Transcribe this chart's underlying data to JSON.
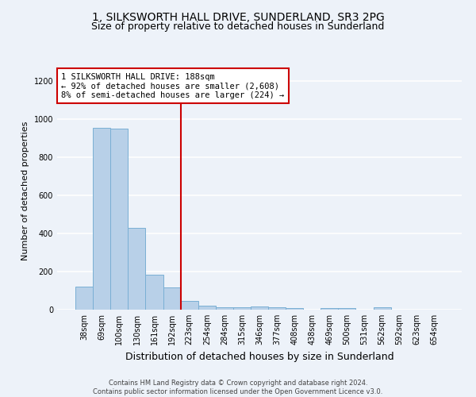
{
  "title": "1, SILKSWORTH HALL DRIVE, SUNDERLAND, SR3 2PG",
  "subtitle": "Size of property relative to detached houses in Sunderland",
  "xlabel": "Distribution of detached houses by size in Sunderland",
  "ylabel": "Number of detached properties",
  "categories": [
    "38sqm",
    "69sqm",
    "100sqm",
    "130sqm",
    "161sqm",
    "192sqm",
    "223sqm",
    "254sqm",
    "284sqm",
    "315sqm",
    "346sqm",
    "377sqm",
    "408sqm",
    "438sqm",
    "469sqm",
    "500sqm",
    "531sqm",
    "562sqm",
    "592sqm",
    "623sqm",
    "654sqm"
  ],
  "values": [
    120,
    955,
    950,
    430,
    185,
    115,
    45,
    20,
    13,
    13,
    15,
    13,
    10,
    0,
    10,
    10,
    0,
    12,
    0,
    0,
    0
  ],
  "bar_color": "#b8d0e8",
  "bar_edge_color": "#7aafd4",
  "property_line_x": 5.5,
  "annotation_line1": "1 SILKSWORTH HALL DRIVE: 188sqm",
  "annotation_line2": "← 92% of detached houses are smaller (2,608)",
  "annotation_line3": "8% of semi-detached houses are larger (224) →",
  "annotation_facecolor": "#ffffff",
  "annotation_edge_color": "#cc0000",
  "vline_color": "#cc0000",
  "ylim": [
    0,
    1250
  ],
  "yticks": [
    0,
    200,
    400,
    600,
    800,
    1000,
    1200
  ],
  "footer1": "Contains HM Land Registry data © Crown copyright and database right 2024.",
  "footer2": "Contains public sector information licensed under the Open Government Licence v3.0.",
  "background_color": "#edf2f9",
  "grid_color": "#ffffff",
  "title_fontsize": 10,
  "subtitle_fontsize": 9,
  "ylabel_fontsize": 8,
  "xlabel_fontsize": 9,
  "tick_fontsize": 7,
  "footer_fontsize": 6,
  "annotation_fontsize": 7.5
}
